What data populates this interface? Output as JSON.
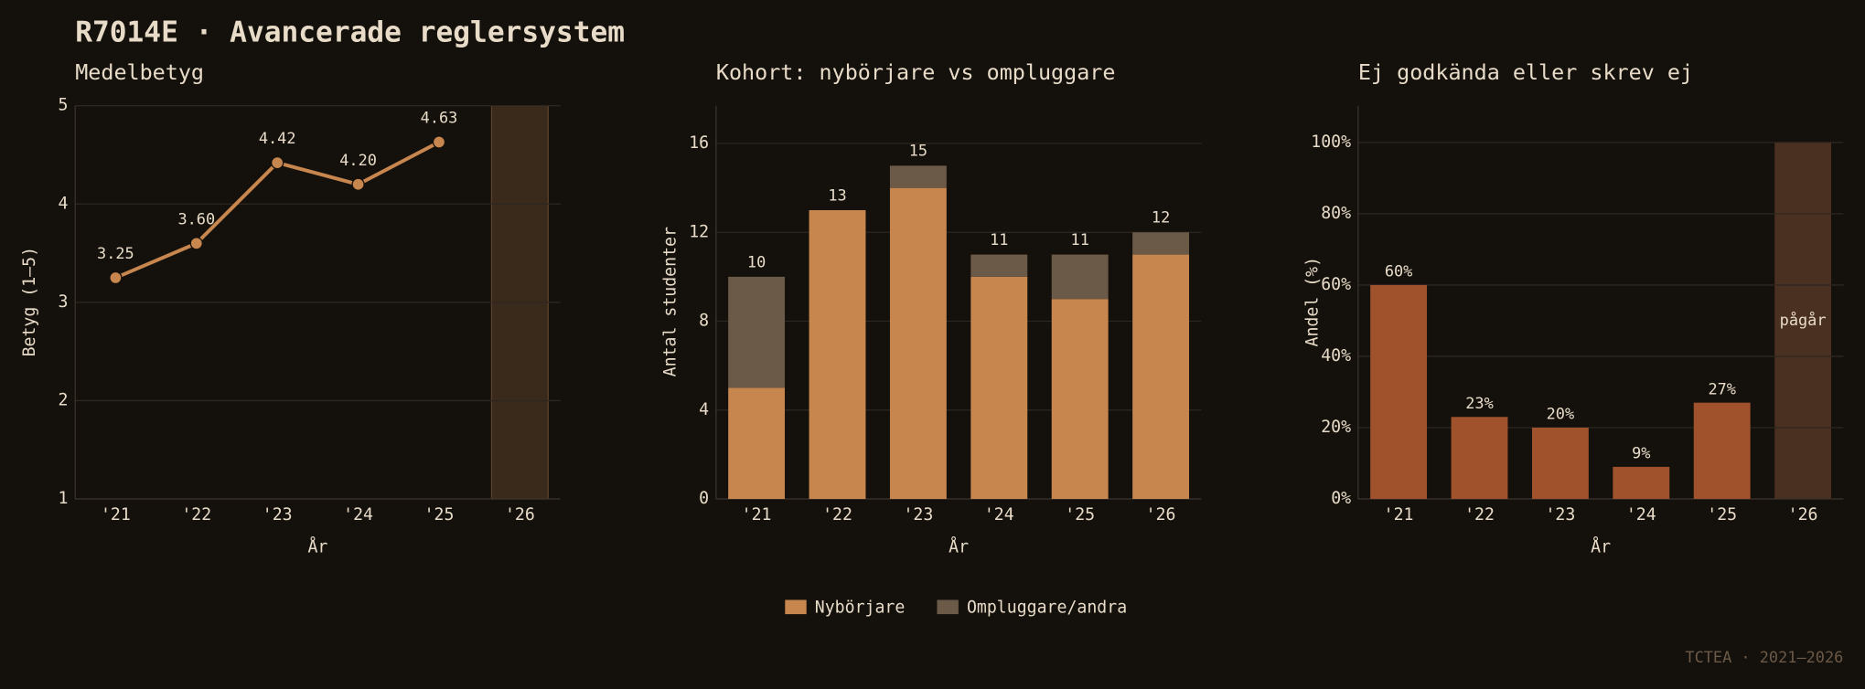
{
  "title": "R7014E · Avancerade reglersystem",
  "footer": "TCTEA · 2021–2026",
  "chart_data": [
    {
      "type": "line",
      "title": "Medelbetyg",
      "x_label": "År",
      "y_label": "Betyg (1–5)",
      "categories": [
        "'21",
        "'22",
        "'23",
        "'24",
        "'25",
        "'26"
      ],
      "values": [
        3.25,
        3.6,
        4.42,
        4.2,
        4.63,
        null
      ],
      "value_labels": [
        "3.25",
        "3.60",
        "4.42",
        "4.20",
        "4.63",
        null
      ],
      "color": "#c8864f",
      "shade_last": true,
      "shade_color": "#3a2a1c",
      "ylim": [
        1,
        5
      ],
      "yticks": [
        1,
        2,
        3,
        4,
        5
      ],
      "grid": true
    },
    {
      "type": "stacked_bar",
      "title": "Kohort: nybörjare vs ompluggare",
      "x_label": "År",
      "y_label": "Antal studenter",
      "categories": [
        "'21",
        "'22",
        "'23",
        "'24",
        "'25",
        "'26"
      ],
      "series": [
        {
          "name": "Nybörjare",
          "color": "#c8864f",
          "values": [
            5,
            13,
            14,
            10,
            9,
            11
          ]
        },
        {
          "name": "Ompluggare/andra",
          "color": "#6b5a48",
          "values": [
            5,
            0,
            1,
            1,
            2,
            1
          ]
        }
      ],
      "totals": [
        10,
        13,
        15,
        11,
        11,
        12
      ],
      "legend": "bottom",
      "ylim": [
        0,
        17.7
      ],
      "yticks": [
        0,
        4,
        8,
        12,
        16
      ],
      "grid": true
    },
    {
      "type": "bar",
      "title": "Ej godkända eller skrev ej",
      "x_label": "År",
      "y_label": "Andel (%)",
      "categories": [
        "'21",
        "'22",
        "'23",
        "'24",
        "'25",
        "'26"
      ],
      "values": [
        60,
        23,
        20,
        9,
        27,
        null
      ],
      "value_labels": [
        "60%",
        "23%",
        "20%",
        "9%",
        "27%",
        null
      ],
      "color": "#a0522d",
      "shade_last": true,
      "shade_color": "#4a3020",
      "annotation": "pågår",
      "ylim": [
        0,
        110.3
      ],
      "yticks": [
        {
          "value": 0,
          "label": "0%"
        },
        {
          "value": 20,
          "label": "20%"
        },
        {
          "value": 40,
          "label": "40%"
        },
        {
          "value": 60,
          "label": "60%"
        },
        {
          "value": 80,
          "label": "80%"
        },
        {
          "value": 100,
          "label": "100%"
        }
      ],
      "grid": true
    }
  ]
}
